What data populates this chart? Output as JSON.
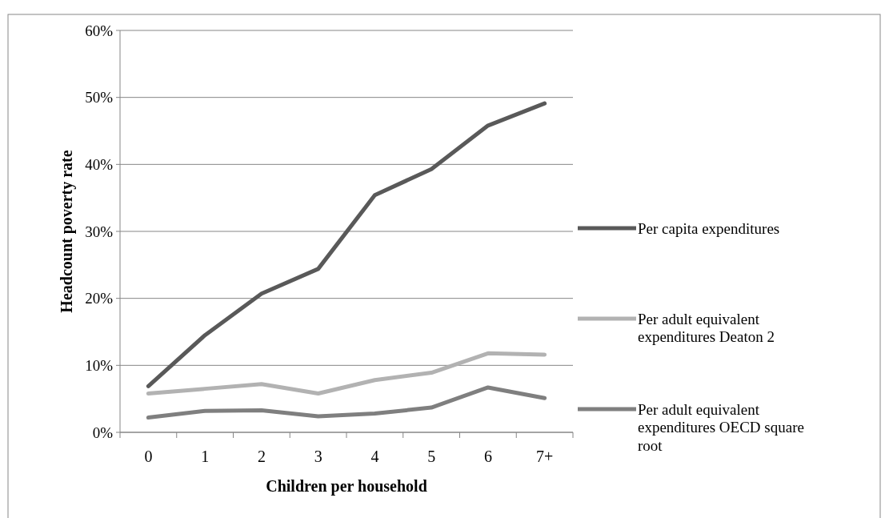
{
  "chart_data": {
    "type": "line",
    "xlabel": "Children per household",
    "ylabel": "Headcount poverty rate",
    "categories": [
      "0",
      "1",
      "2",
      "3",
      "4",
      "5",
      "6",
      "7+"
    ],
    "ylim": [
      0,
      60
    ],
    "yticks": [
      {
        "value": 0,
        "label": "0%"
      },
      {
        "value": 10,
        "label": "10%"
      },
      {
        "value": 20,
        "label": "20%"
      },
      {
        "value": 30,
        "label": "30%"
      },
      {
        "value": 40,
        "label": "40%"
      },
      {
        "value": 50,
        "label": "50%"
      },
      {
        "value": 60,
        "label": "60%"
      }
    ],
    "grid": "y",
    "legend": "right",
    "marker": "none",
    "line_style": "solid",
    "series": [
      {
        "name": "Per capita expenditures",
        "color": "#595959",
        "values": [
          6.9,
          14.5,
          20.7,
          24.4,
          35.4,
          39.3,
          45.8,
          49.1
        ]
      },
      {
        "name": "Per adult equivalent expenditures Deaton 2",
        "color": "#b2b2b2",
        "values": [
          5.8,
          6.5,
          7.2,
          5.8,
          7.8,
          8.9,
          11.8,
          11.6
        ]
      },
      {
        "name": "Per adult equivalent expenditures OECD square root",
        "color": "#7f7f7f",
        "values": [
          2.2,
          3.2,
          3.3,
          2.4,
          2.8,
          3.7,
          6.7,
          5.1
        ]
      }
    ]
  }
}
